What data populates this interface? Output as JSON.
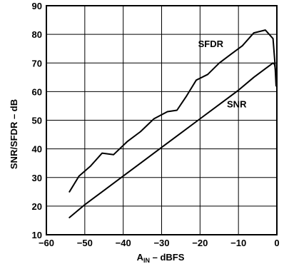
{
  "chart_data": {
    "type": "line",
    "title": "",
    "xlabel_main": "A",
    "xlabel_sub": "IN",
    "xlabel_rest": " – dBFS",
    "ylabel": "SNR/SFDR – dB",
    "xlim": [
      -60,
      0
    ],
    "ylim": [
      10,
      90
    ],
    "grid": true,
    "x_ticks": [
      "−60",
      "−50",
      "−40",
      "−30",
      "−20",
      "−10",
      "0"
    ],
    "y_ticks": [
      "10",
      "20",
      "30",
      "40",
      "50",
      "60",
      "70",
      "80",
      "90"
    ],
    "series": [
      {
        "name": "SFDR",
        "x": [
          -54,
          -51.5,
          -48.5,
          -45.5,
          -42.5,
          -39,
          -35.5,
          -32,
          -28.5,
          -26,
          -23.5,
          -21,
          -18,
          -15,
          -12,
          -9,
          -6,
          -3,
          -2,
          -1,
          -0.5,
          -0.2
        ],
        "y": [
          25,
          30.5,
          34,
          38.5,
          38,
          42.5,
          46,
          50.5,
          53,
          53.5,
          58.5,
          64,
          66,
          70,
          73,
          76,
          80.5,
          81.5,
          80,
          78.5,
          70,
          62
        ]
      },
      {
        "name": "SNR",
        "x": [
          -54,
          -50,
          -45,
          -40,
          -35,
          -30,
          -25,
          -20,
          -15,
          -10,
          -6,
          -3,
          -1,
          -0.6,
          -0.3,
          -0.1
        ],
        "y": [
          16,
          20.5,
          25.5,
          30.5,
          35.5,
          40.5,
          45.5,
          50.5,
          55.5,
          60.5,
          65,
          68,
          70,
          69.5,
          67,
          62
        ]
      }
    ],
    "series_labels": [
      {
        "text": "SFDR",
        "x": -20.5,
        "y": 75.5
      },
      {
        "text": "SNR",
        "x": -13,
        "y": 54.5
      }
    ]
  }
}
